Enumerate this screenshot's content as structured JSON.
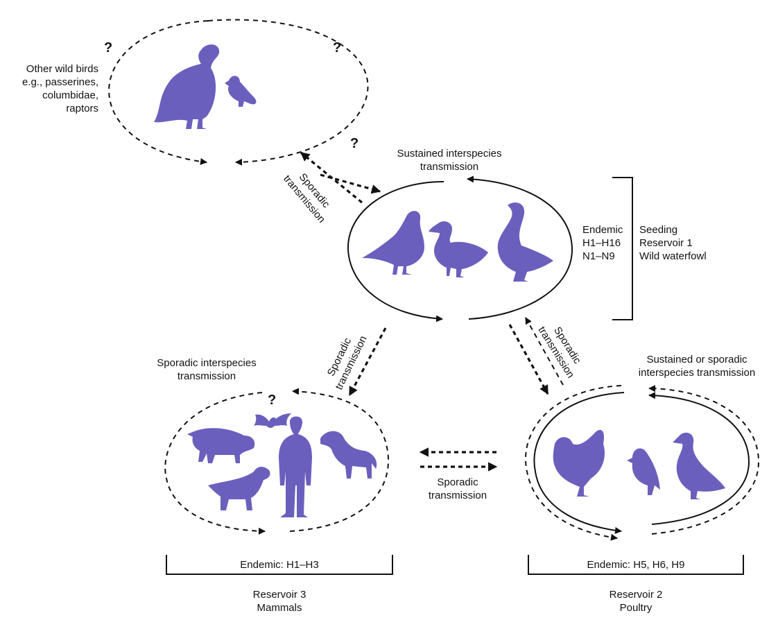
{
  "wild_birds": {
    "label": "Other wild birds\ne.g., passerines,\ncolumbidae,\nraptors",
    "q_left": "?",
    "q_right": "?",
    "q_link": "?"
  },
  "waterfowl": {
    "top_label": "Sustained interspecies\ntransmission",
    "endemic": "Endemic\nH1–H16\nN1–N9",
    "reservoir": "Seeding\nReservoir 1\nWild waterfowl"
  },
  "links": {
    "wild_to_waterfowl": "Sporadic\ntransmission",
    "waterfowl_to_mammals": "Sporadic\ntransmission",
    "waterfowl_to_poultry": "Sporadic\ntransmission",
    "mammals_poultry": "Sporadic\ntransmission"
  },
  "mammals": {
    "top_label": "Sporadic interspecies\ntransmission",
    "bat_q": "?",
    "endemic": "Endemic: H1–H3",
    "reservoir": "Reservoir 3\nMammals"
  },
  "poultry": {
    "top_label": "Sustained or sporadic\ninterspecies transmission",
    "endemic": "Endemic: H5, H6, H9",
    "reservoir": "Reservoir 2\nPoultry"
  },
  "colors": {
    "silhouette": "#6b5fbd",
    "line": "#111111"
  }
}
